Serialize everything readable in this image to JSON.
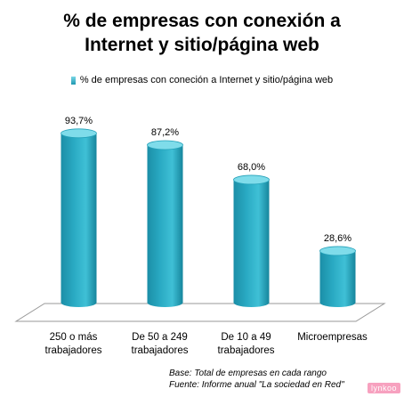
{
  "title_lines": [
    "% de empresas con conexión a",
    "Internet y sitio/página web"
  ],
  "legend_label": "% de empresas con coneción a Internet y sitio/página web",
  "source": {
    "base": "Base: Total de empresas en cada rango",
    "fuente": "Fuente:  Informe anual \"La sociedad en Red\""
  },
  "brand": "lynkoo",
  "colors": {
    "bar": "#29a9c2",
    "bar_top": "#7fdcea",
    "floor": "#ffffff"
  },
  "chart_data": {
    "type": "bar",
    "title": "% de empresas con conexión a Internet y sitio/página web",
    "categories": [
      [
        "250 o más",
        "trabajadores"
      ],
      [
        "De 50 a 249",
        "trabajadores"
      ],
      [
        "De 10 a 49",
        "trabajadores"
      ],
      [
        "Microempresas"
      ]
    ],
    "series": [
      {
        "name": "% de empresas con coneción a Internet y sitio/página web",
        "values": [
          93.7,
          87.2,
          68.0,
          28.6
        ]
      }
    ],
    "data_labels": [
      "93,7%",
      "87,2%",
      "68,0%",
      "28,6%"
    ],
    "ylim": [
      0,
      100
    ],
    "grid": false,
    "legend_position": "top"
  }
}
